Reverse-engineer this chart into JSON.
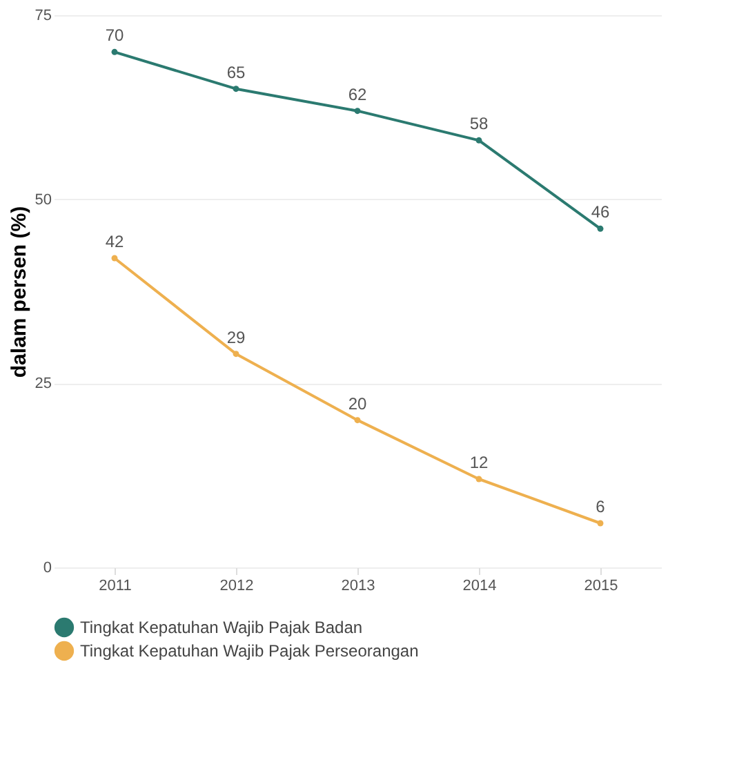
{
  "chart_data": {
    "type": "line",
    "ylabel": "dalam persen (%)",
    "categories": [
      "2011",
      "2012",
      "2013",
      "2014",
      "2015"
    ],
    "series": [
      {
        "name": "Tingkat Kepatuhan Wajib Pajak Badan",
        "color": "#2b7a70",
        "values": [
          70,
          65,
          62,
          58,
          46
        ]
      },
      {
        "name": "Tingkat Kepatuhan Wajib Pajak Perseorangan",
        "color": "#eeb04f",
        "values": [
          42,
          29,
          20,
          12,
          6
        ]
      }
    ],
    "ylim": [
      0,
      75
    ],
    "yticks": [
      0,
      25,
      50,
      75
    ],
    "grid": "y",
    "legend": "bottom",
    "marker": "circle",
    "line_style": "solid",
    "data_labels": true
  }
}
